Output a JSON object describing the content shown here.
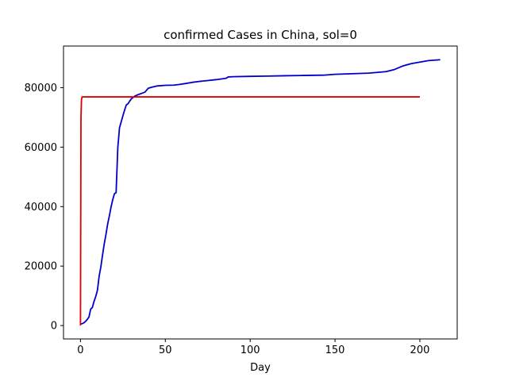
{
  "chart_data": {
    "type": "line",
    "title": "confirmed Cases in China, sol=0",
    "xlabel": "Day",
    "ylabel": "",
    "xlim": [
      -10,
      222
    ],
    "ylim": [
      -4500,
      94000
    ],
    "xticks": [
      0,
      50,
      100,
      150,
      200
    ],
    "xtick_labels": [
      "0",
      "50",
      "100",
      "150",
      "200"
    ],
    "yticks": [
      0,
      20000,
      40000,
      60000,
      80000
    ],
    "ytick_labels": [
      "0",
      "20000",
      "40000",
      "60000",
      "80000"
    ],
    "grid": false,
    "legend": "none",
    "series": [
      {
        "color": "#0000cc",
        "x": [
          0,
          1,
          2,
          3,
          4,
          5,
          6,
          7,
          8,
          9,
          10,
          11,
          12,
          13,
          14,
          15,
          16,
          17,
          18,
          19,
          20,
          21,
          22,
          23,
          24,
          25,
          26,
          27,
          28,
          29,
          30,
          32,
          34,
          36,
          38,
          40,
          42,
          45,
          50,
          55,
          58,
          62,
          66,
          70,
          75,
          80,
          85,
          86,
          87,
          90,
          100,
          110,
          120,
          130,
          143,
          150,
          160,
          170,
          180,
          185,
          190,
          195,
          200,
          205,
          212
        ],
        "y": [
          548,
          639,
          916,
          1399,
          2062,
          2863,
          5494,
          6070,
          8124,
          9783,
          11871,
          16607,
          19693,
          23680,
          27409,
          30553,
          34075,
          36778,
          39790,
          42306,
          44327,
          44699,
          59804,
          66492,
          68500,
          70548,
          72436,
          74185,
          74576,
          75465,
          76288,
          77150,
          77658,
          78064,
          78497,
          79826,
          80151,
          80565,
          80778,
          80860,
          81048,
          81400,
          81800,
          82100,
          82400,
          82700,
          83100,
          83200,
          83600,
          83700,
          83800,
          83900,
          84000,
          84100,
          84200,
          84500,
          84700,
          84900,
          85400,
          86100,
          87300,
          88100,
          88600,
          89100,
          89400
        ]
      },
      {
        "color": "#dd0000",
        "x": [
          0,
          0.3,
          0.6,
          1,
          2,
          200
        ],
        "y": [
          0,
          70000,
          76000,
          76900,
          76900,
          76900
        ]
      }
    ]
  }
}
